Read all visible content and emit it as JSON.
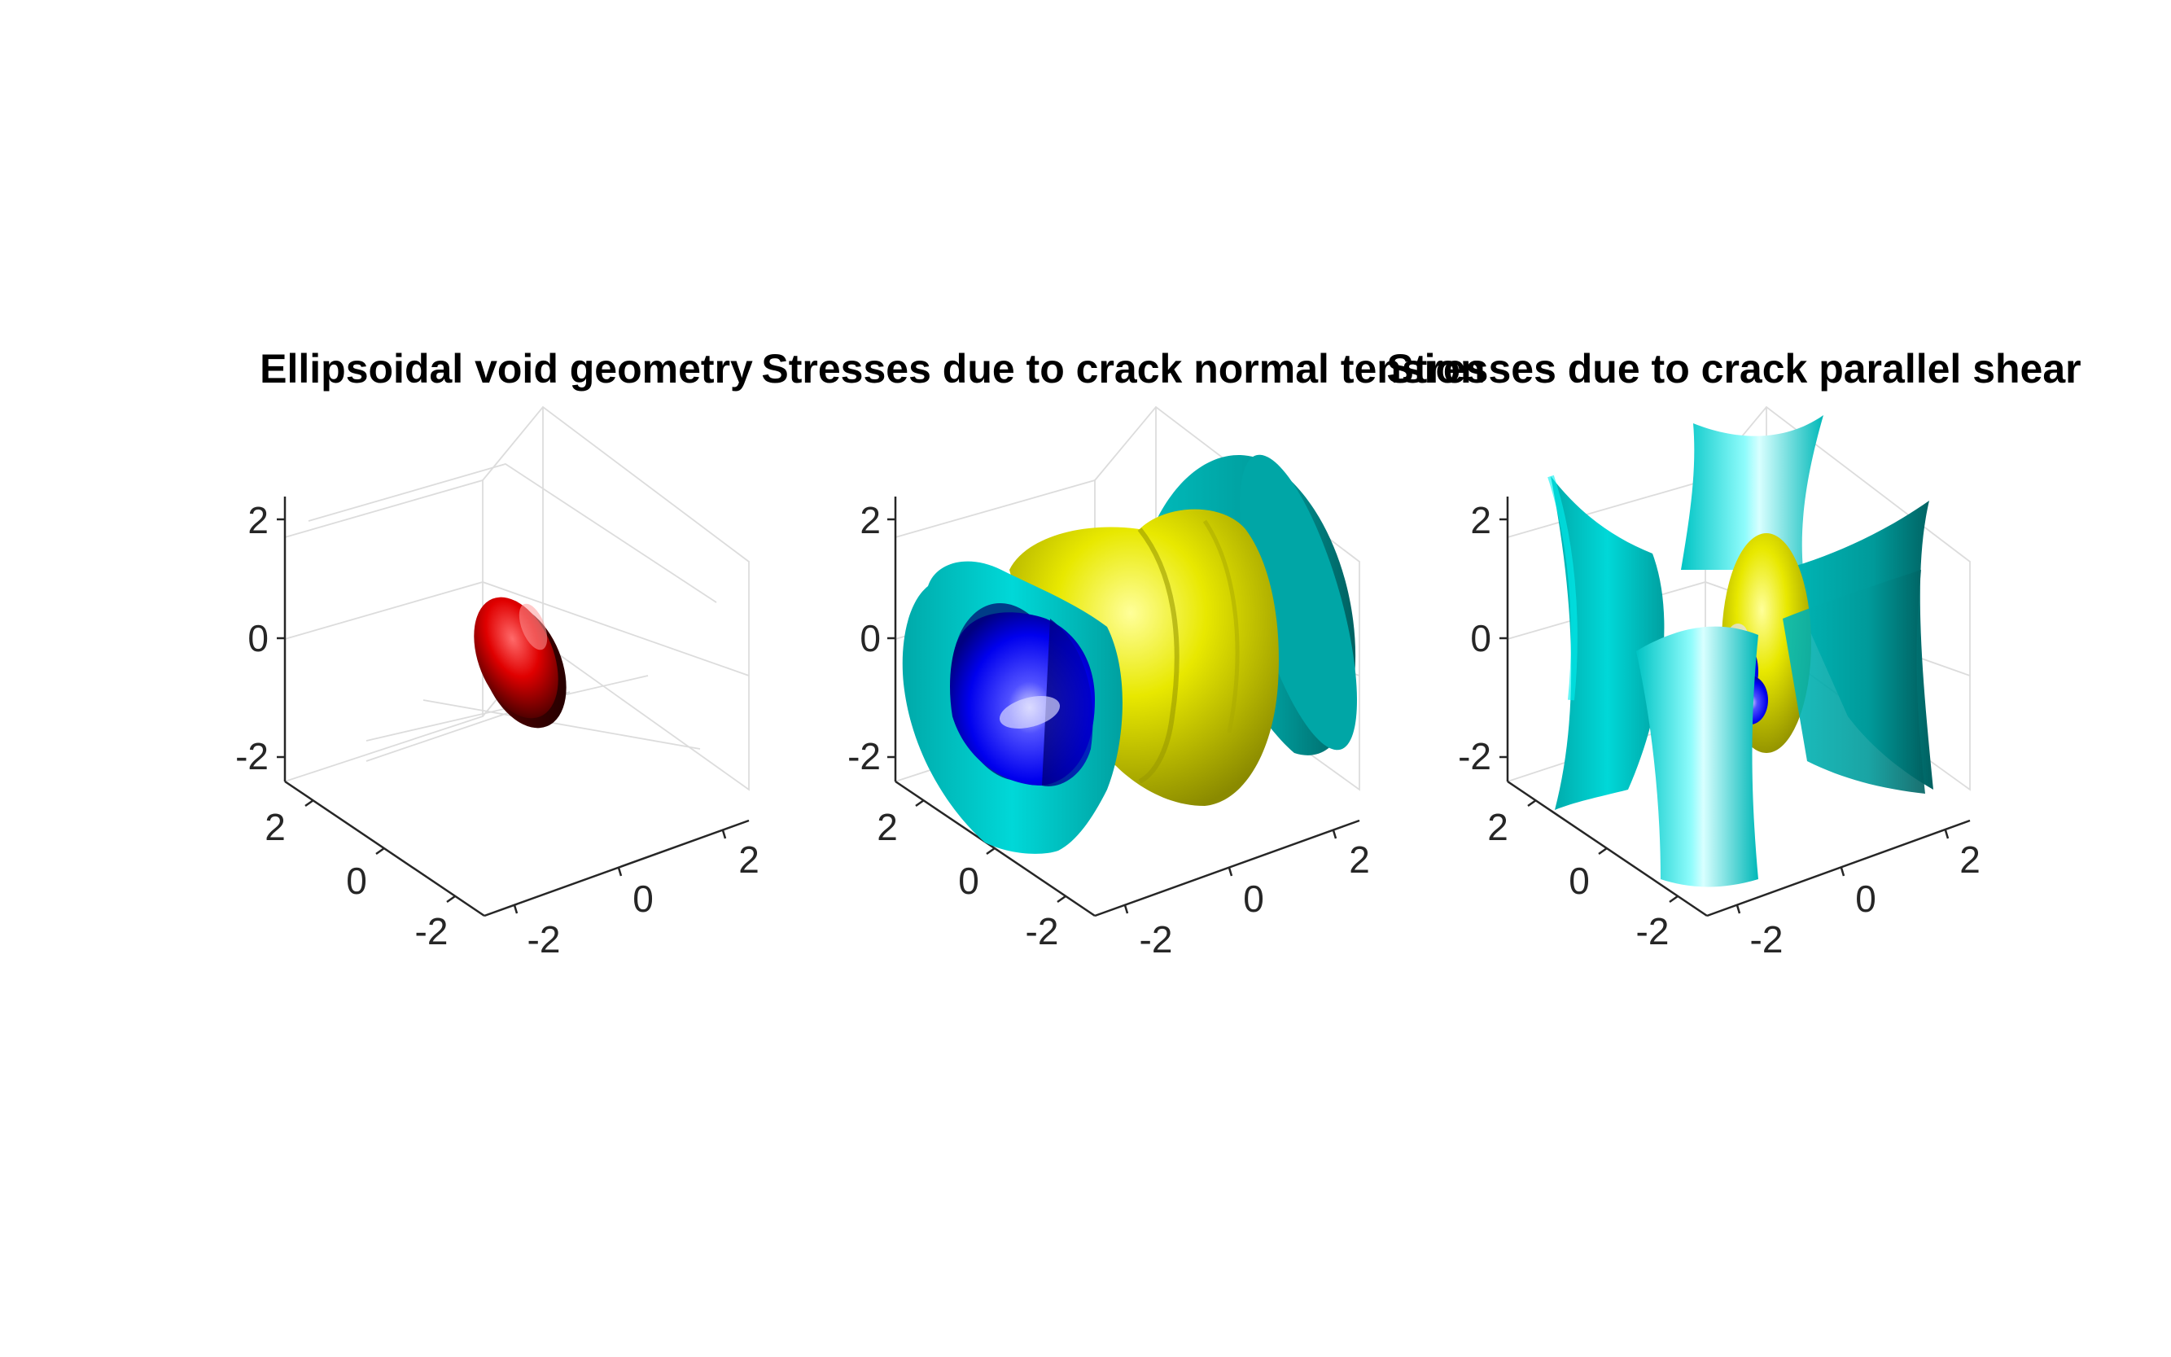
{
  "chart_data": [
    {
      "type": "isosurface-3d",
      "title": "Ellipsoidal void geometry",
      "xlim": [
        -2.5,
        2.5
      ],
      "ylim": [
        -2.5,
        2.5
      ],
      "zlim": [
        -2.5,
        2.5
      ],
      "x_ticks": [
        "-2",
        "0",
        "2"
      ],
      "y_ticks": [
        "-2",
        "0",
        "2"
      ],
      "z_ticks": [
        "-2",
        "0",
        "2"
      ],
      "grid": true,
      "surfaces": [
        {
          "name": "void",
          "color": "#e00000",
          "shape": "flattened ellipsoid at origin"
        }
      ]
    },
    {
      "type": "isosurface-3d",
      "title": "Stresses due to crack normal tension",
      "xlim": [
        -2.5,
        2.5
      ],
      "ylim": [
        -2.5,
        2.5
      ],
      "zlim": [
        -2.5,
        2.5
      ],
      "x_ticks": [
        "-2",
        "0",
        "2"
      ],
      "y_ticks": [
        "-2",
        "0",
        "2"
      ],
      "z_ticks": [
        "-2",
        "0",
        "2"
      ],
      "grid": true,
      "surfaces": [
        {
          "name": "inner lobe",
          "color": "#0000ff"
        },
        {
          "name": "torus rings",
          "color": "#e6e600"
        },
        {
          "name": "outer flared shell",
          "color": "#00d4d4"
        }
      ]
    },
    {
      "type": "isosurface-3d",
      "title": "Stresses due to crack parallel shear",
      "xlim": [
        -2.5,
        2.5
      ],
      "ylim": [
        -2.5,
        2.5
      ],
      "zlim": [
        -2.5,
        2.5
      ],
      "x_ticks": [
        "-2",
        "0",
        "2"
      ],
      "y_ticks": [
        "-2",
        "0",
        "2"
      ],
      "z_ticks": [
        "-2",
        "0",
        "2"
      ],
      "grid": true,
      "surfaces": [
        {
          "name": "central lobes",
          "color": "#0000ff"
        },
        {
          "name": "ring",
          "color": "#e6e600"
        },
        {
          "name": "saddle shells",
          "color": "#00d4d4"
        }
      ]
    }
  ]
}
